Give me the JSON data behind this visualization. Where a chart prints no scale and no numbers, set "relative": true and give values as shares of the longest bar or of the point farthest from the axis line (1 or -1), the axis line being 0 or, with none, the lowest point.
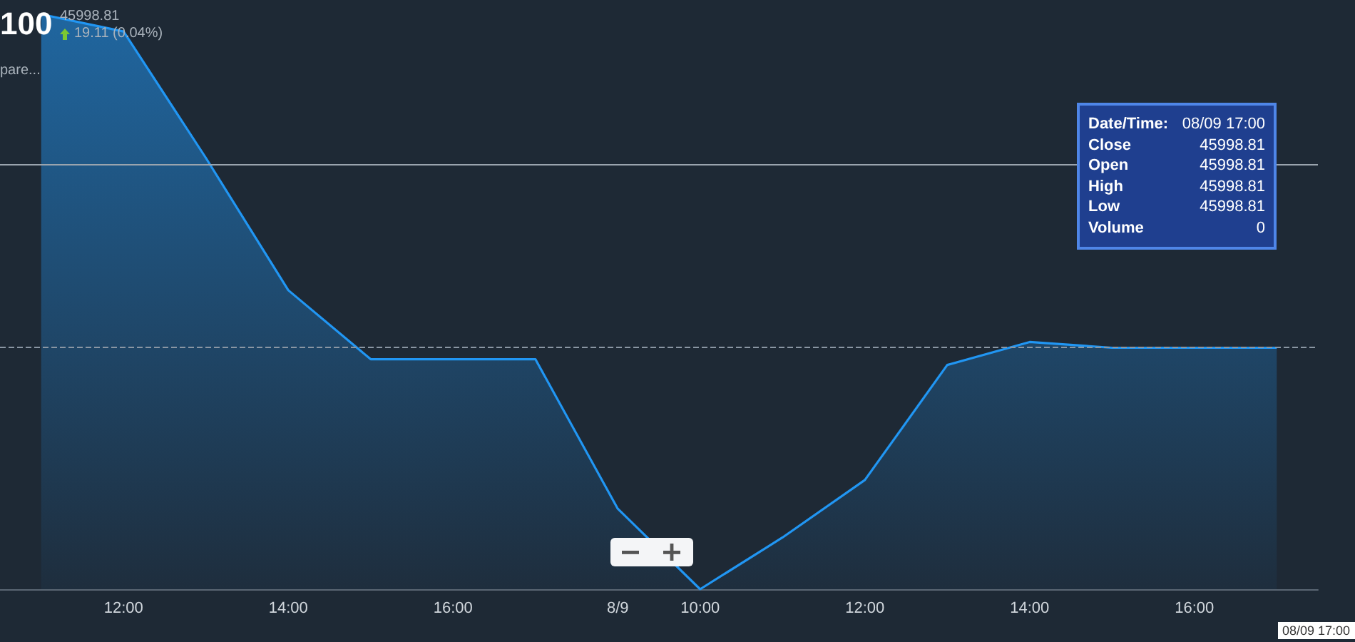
{
  "chart_data": {
    "type": "area",
    "title": "100",
    "subtitle": "45998.81",
    "annotations": [
      "19.11 (0.04%)",
      "pare...",
      "Date/Time:",
      "08/09 17:00",
      "Close",
      "45998.81",
      "Open",
      "45998.81",
      "High",
      "45998.81",
      "Low",
      "45998.81",
      "Volume",
      "0",
      "08/09 17:00"
    ],
    "categories": [
      null,
      "12:00",
      null,
      "14:00",
      null,
      "16:00",
      null,
      "8/9",
      "10:00",
      null,
      "12:00",
      null,
      "14:00",
      null,
      "16:00",
      null
    ],
    "relative": true,
    "series": [
      {
        "color": "#2196f3",
        "values": [
          1,
          0.97,
          0.75,
          0.52,
          0.4,
          0.4,
          0.4,
          0.14,
          0,
          0.09,
          0.19,
          0.39,
          0.43,
          0.42,
          0.42,
          0.42
        ]
      }
    ],
    "ref_lines": [
      {
        "axis": "y",
        "value": 0.42,
        "color": "#8a96a3",
        "line_style": "dashed"
      },
      {
        "axis": "y",
        "value": 0.74,
        "color": "#9aa4ae",
        "line_style": "solid"
      }
    ],
    "grid": false,
    "marker": "none",
    "tick_labels": "x"
  }
}
